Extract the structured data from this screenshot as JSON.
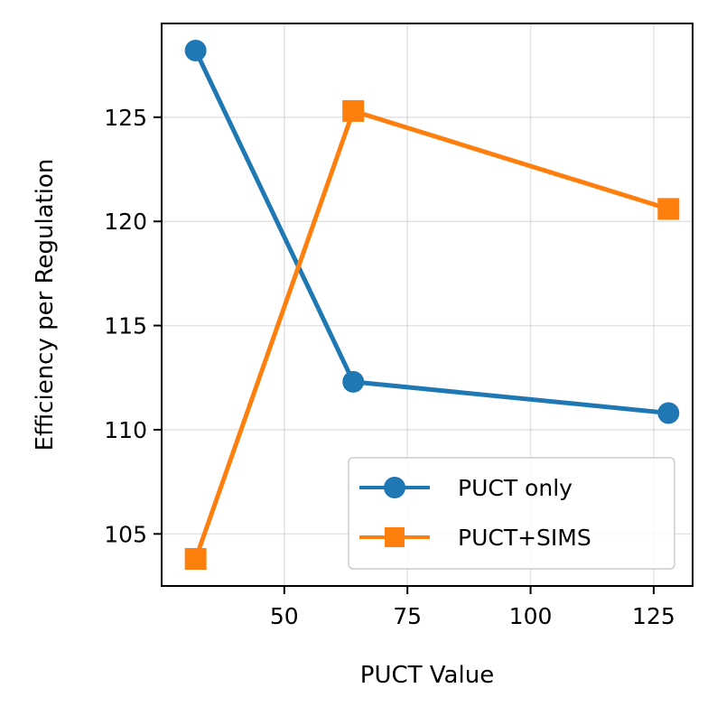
{
  "chart_data": {
    "type": "line",
    "title": "",
    "xlabel": "PUCT Value",
    "ylabel": "Efficiency per Regulation",
    "xlim": [
      25.1,
      132.9
    ],
    "ylim": [
      102.5,
      129.5
    ],
    "xticks": [
      50,
      75,
      100,
      125
    ],
    "yticks": [
      105,
      110,
      115,
      120,
      125
    ],
    "grid": true,
    "legend_position": "lower-right",
    "series": [
      {
        "name": "PUCT only",
        "color": "#1f77b4",
        "marker": "circle",
        "x": [
          32,
          64,
          128
        ],
        "y": [
          128.2,
          112.3,
          110.8
        ]
      },
      {
        "name": "PUCT+SIMS",
        "color": "#ff7f0e",
        "marker": "square",
        "x": [
          32,
          64,
          128
        ],
        "y": [
          103.8,
          125.3,
          120.6
        ]
      }
    ]
  }
}
